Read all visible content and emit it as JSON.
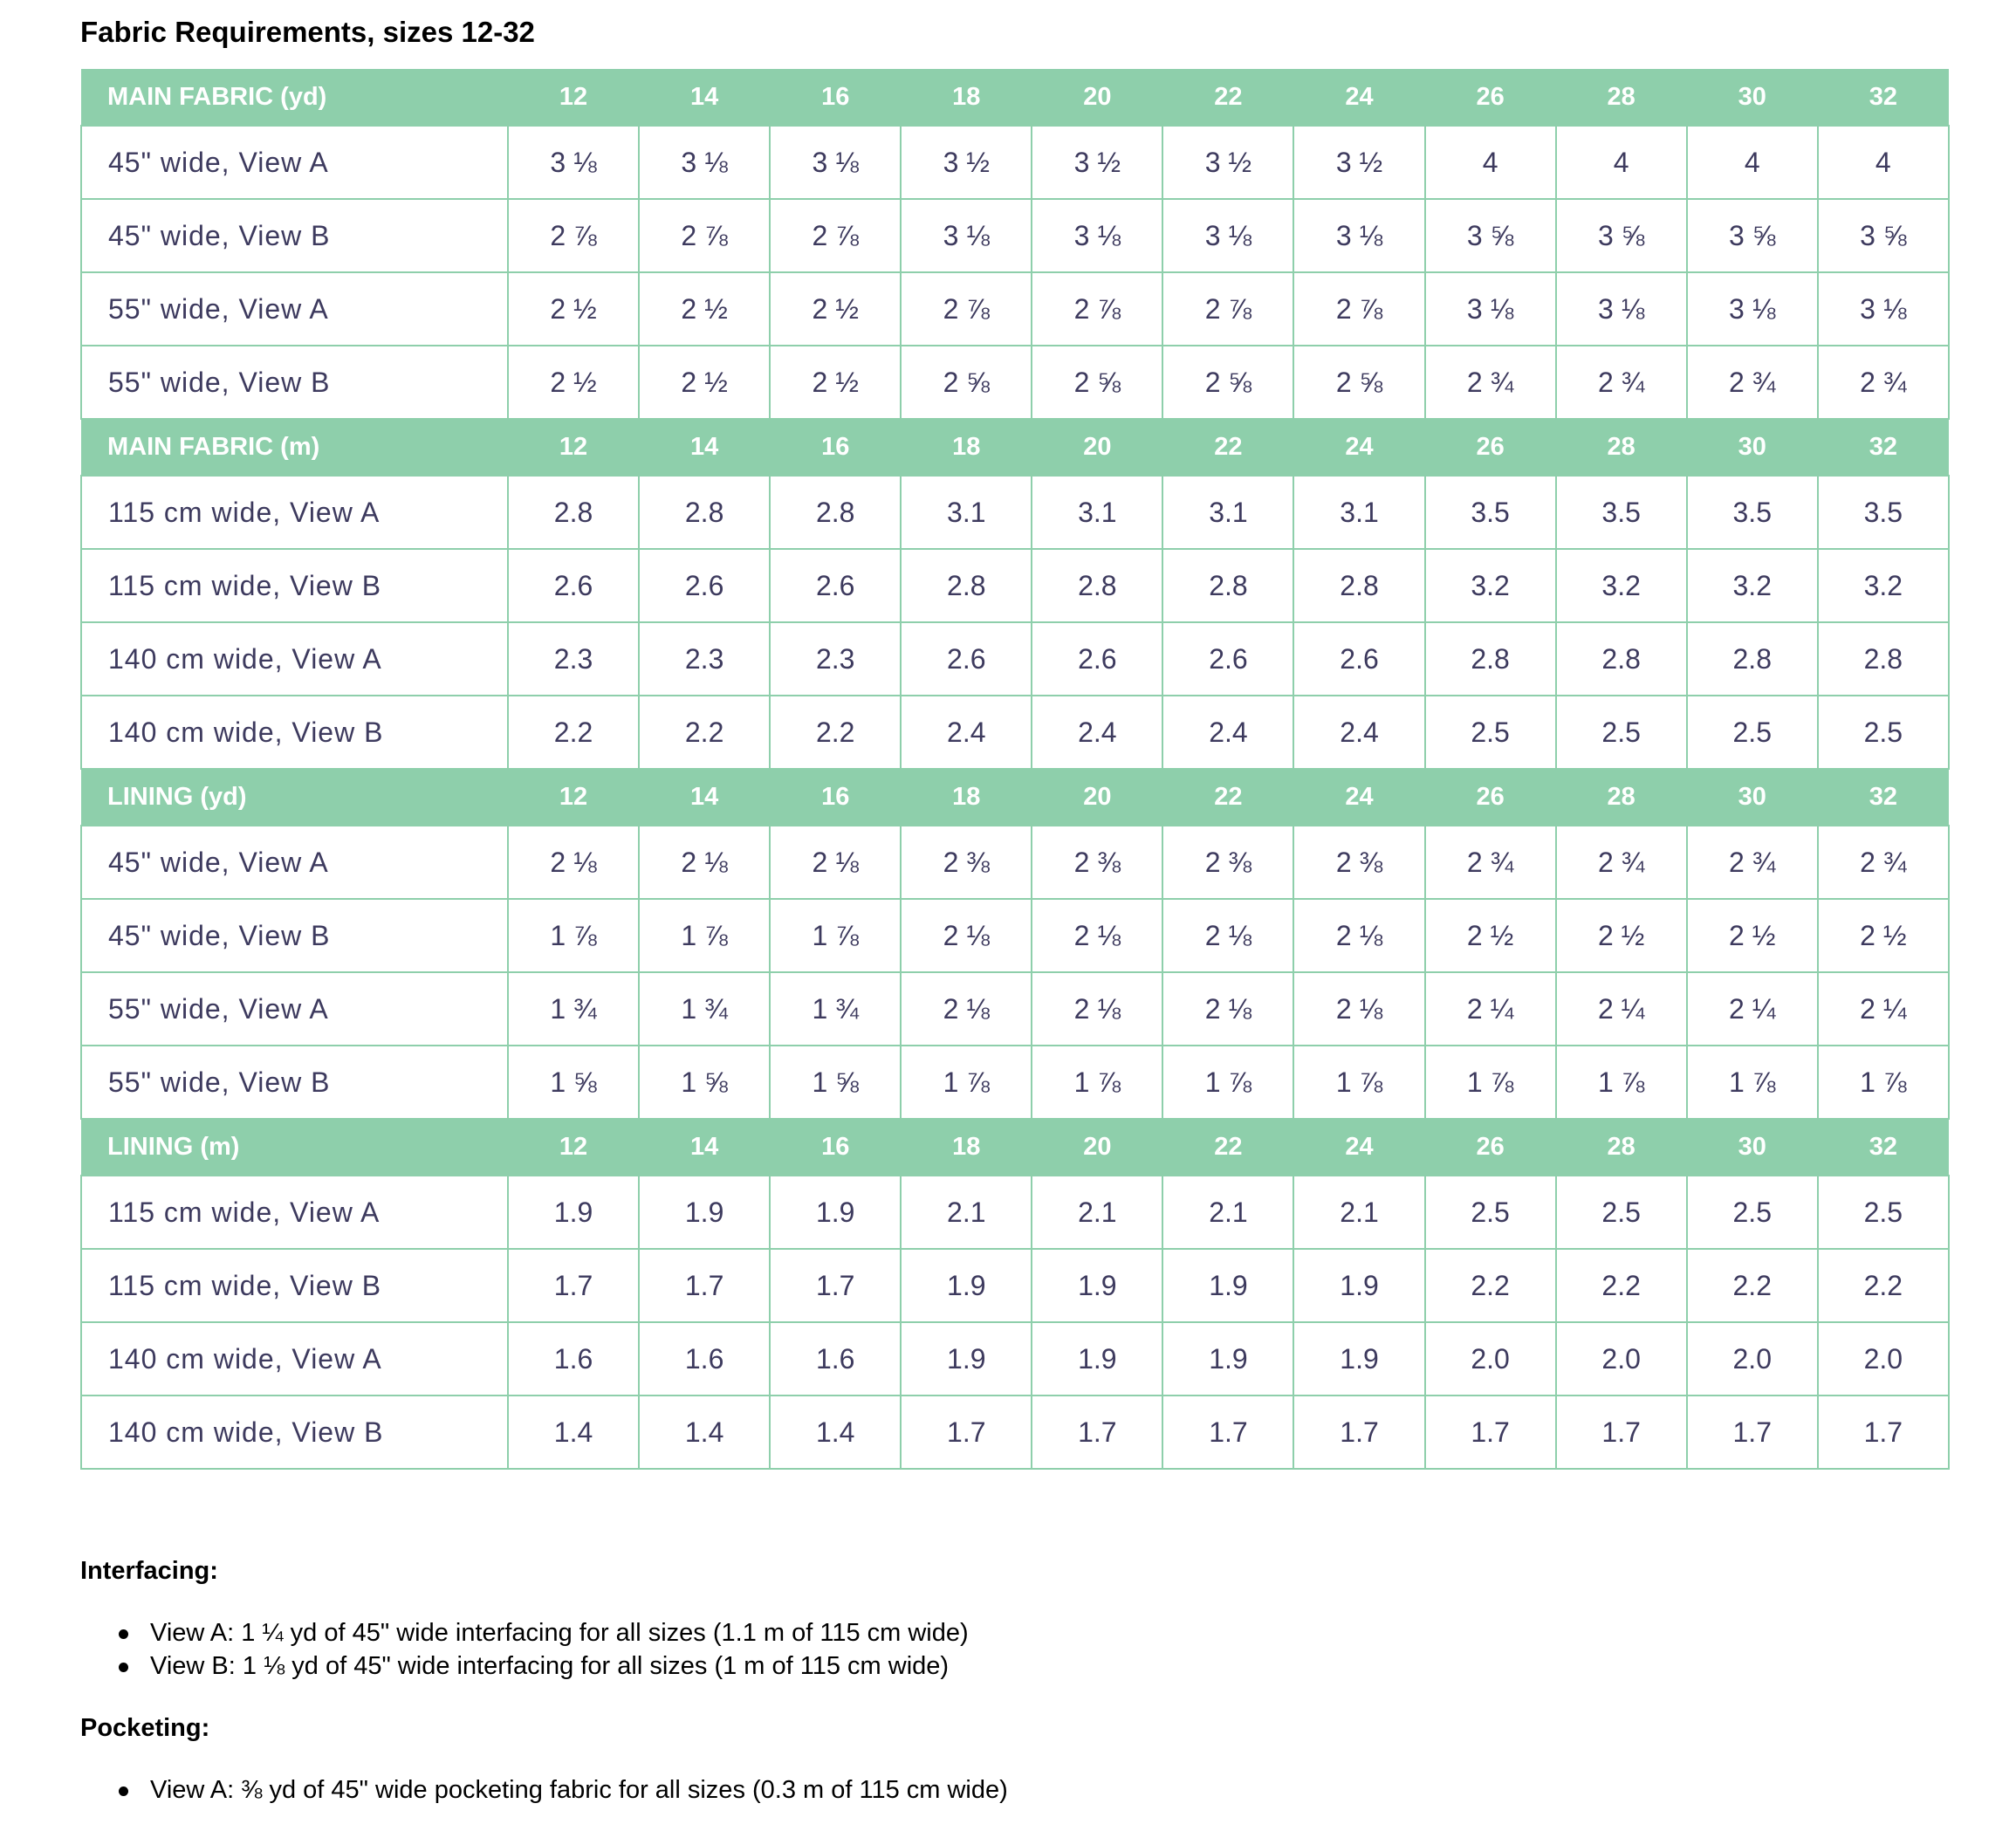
{
  "title": "Fabric Requirements, sizes 12-32",
  "colors": {
    "header_bg": "#8ecfab",
    "header_text": "#ffffff",
    "cell_text": "#3d3a5e",
    "border": "#8ecfab"
  },
  "sections": [
    {
      "label": "MAIN FABRIC (yd)",
      "sizes": [
        "12",
        "14",
        "16",
        "18",
        "20",
        "22",
        "24",
        "26",
        "28",
        "30",
        "32"
      ],
      "rows": [
        {
          "label": "45\" wide, View A",
          "values": [
            "3 ⅛",
            "3 ⅛",
            "3 ⅛",
            "3 ½",
            "3 ½",
            "3 ½",
            "3 ½",
            "4",
            "4",
            "4",
            "4"
          ]
        },
        {
          "label": "45\" wide, View B",
          "values": [
            "2 ⅞",
            "2 ⅞",
            "2 ⅞",
            "3 ⅛",
            "3 ⅛",
            "3 ⅛",
            "3 ⅛",
            "3 ⅝",
            "3 ⅝",
            "3 ⅝",
            "3 ⅝"
          ]
        },
        {
          "label": "55\" wide, View A",
          "values": [
            "2 ½",
            "2 ½",
            "2 ½",
            "2 ⅞",
            "2 ⅞",
            "2 ⅞",
            "2 ⅞",
            "3 ⅛",
            "3 ⅛",
            "3 ⅛",
            "3 ⅛"
          ]
        },
        {
          "label": "55\" wide, View B",
          "values": [
            "2 ½",
            "2 ½",
            "2 ½",
            "2 ⅝",
            "2 ⅝",
            "2 ⅝",
            "2 ⅝",
            "2 ¾",
            "2 ¾",
            "2 ¾",
            "2 ¾"
          ]
        }
      ]
    },
    {
      "label": "MAIN FABRIC (m)",
      "sizes": [
        "12",
        "14",
        "16",
        "18",
        "20",
        "22",
        "24",
        "26",
        "28",
        "30",
        "32"
      ],
      "rows": [
        {
          "label": "115 cm wide, View A",
          "values": [
            "2.8",
            "2.8",
            "2.8",
            "3.1",
            "3.1",
            "3.1",
            "3.1",
            "3.5",
            "3.5",
            "3.5",
            "3.5"
          ]
        },
        {
          "label": "115 cm wide, View B",
          "values": [
            "2.6",
            "2.6",
            "2.6",
            "2.8",
            "2.8",
            "2.8",
            "2.8",
            "3.2",
            "3.2",
            "3.2",
            "3.2"
          ]
        },
        {
          "label": "140 cm wide, View A",
          "values": [
            "2.3",
            "2.3",
            "2.3",
            "2.6",
            "2.6",
            "2.6",
            "2.6",
            "2.8",
            "2.8",
            "2.8",
            "2.8"
          ]
        },
        {
          "label": "140 cm wide, View B",
          "values": [
            "2.2",
            "2.2",
            "2.2",
            "2.4",
            "2.4",
            "2.4",
            "2.4",
            "2.5",
            "2.5",
            "2.5",
            "2.5"
          ]
        }
      ]
    },
    {
      "label": "LINING (yd)",
      "sizes": [
        "12",
        "14",
        "16",
        "18",
        "20",
        "22",
        "24",
        "26",
        "28",
        "30",
        "32"
      ],
      "rows": [
        {
          "label": "45\" wide, View A",
          "values": [
            "2 ⅛",
            "2 ⅛",
            "2 ⅛",
            "2 ⅜",
            "2 ⅜",
            "2 ⅜",
            "2 ⅜",
            "2 ¾",
            "2 ¾",
            "2 ¾",
            "2 ¾"
          ]
        },
        {
          "label": "45\" wide, View B",
          "values": [
            "1 ⅞",
            "1 ⅞",
            "1 ⅞",
            "2 ⅛",
            "2 ⅛",
            "2 ⅛",
            "2 ⅛",
            "2 ½",
            "2 ½",
            "2 ½",
            "2 ½"
          ]
        },
        {
          "label": "55\" wide, View A",
          "values": [
            "1 ¾",
            "1 ¾",
            "1 ¾",
            "2 ⅛",
            "2 ⅛",
            "2 ⅛",
            "2 ⅛",
            "2 ¼",
            "2 ¼",
            "2 ¼",
            "2 ¼"
          ]
        },
        {
          "label": "55\" wide, View B",
          "values": [
            "1 ⅝",
            "1 ⅝",
            "1 ⅝",
            "1 ⅞",
            "1 ⅞",
            "1 ⅞",
            "1 ⅞",
            "1 ⅞",
            "1 ⅞",
            "1 ⅞",
            "1 ⅞"
          ]
        }
      ]
    },
    {
      "label": "LINING (m)",
      "sizes": [
        "12",
        "14",
        "16",
        "18",
        "20",
        "22",
        "24",
        "26",
        "28",
        "30",
        "32"
      ],
      "rows": [
        {
          "label": "115 cm wide, View A",
          "values": [
            "1.9",
            "1.9",
            "1.9",
            "2.1",
            "2.1",
            "2.1",
            "2.1",
            "2.5",
            "2.5",
            "2.5",
            "2.5"
          ]
        },
        {
          "label": "115 cm wide, View B",
          "values": [
            "1.7",
            "1.7",
            "1.7",
            "1.9",
            "1.9",
            "1.9",
            "1.9",
            "2.2",
            "2.2",
            "2.2",
            "2.2"
          ]
        },
        {
          "label": "140 cm wide, View A",
          "values": [
            "1.6",
            "1.6",
            "1.6",
            "1.9",
            "1.9",
            "1.9",
            "1.9",
            "2.0",
            "2.0",
            "2.0",
            "2.0"
          ]
        },
        {
          "label": "140 cm wide, View B",
          "values": [
            "1.4",
            "1.4",
            "1.4",
            "1.7",
            "1.7",
            "1.7",
            "1.7",
            "1.7",
            "1.7",
            "1.7",
            "1.7"
          ]
        }
      ]
    }
  ],
  "interfacing": {
    "heading": "Interfacing:",
    "items": [
      "View A: 1 ¼ yd of 45\" wide interfacing for all sizes (1.1 m of 115 cm wide)",
      "View B: 1 ⅛ yd of 45\" wide interfacing for all sizes (1 m of 115 cm wide)"
    ]
  },
  "pocketing": {
    "heading": "Pocketing:",
    "items": [
      "View A: ⅜ yd of 45\" wide pocketing fabric for all sizes (0.3 m of 115 cm wide)"
    ]
  }
}
